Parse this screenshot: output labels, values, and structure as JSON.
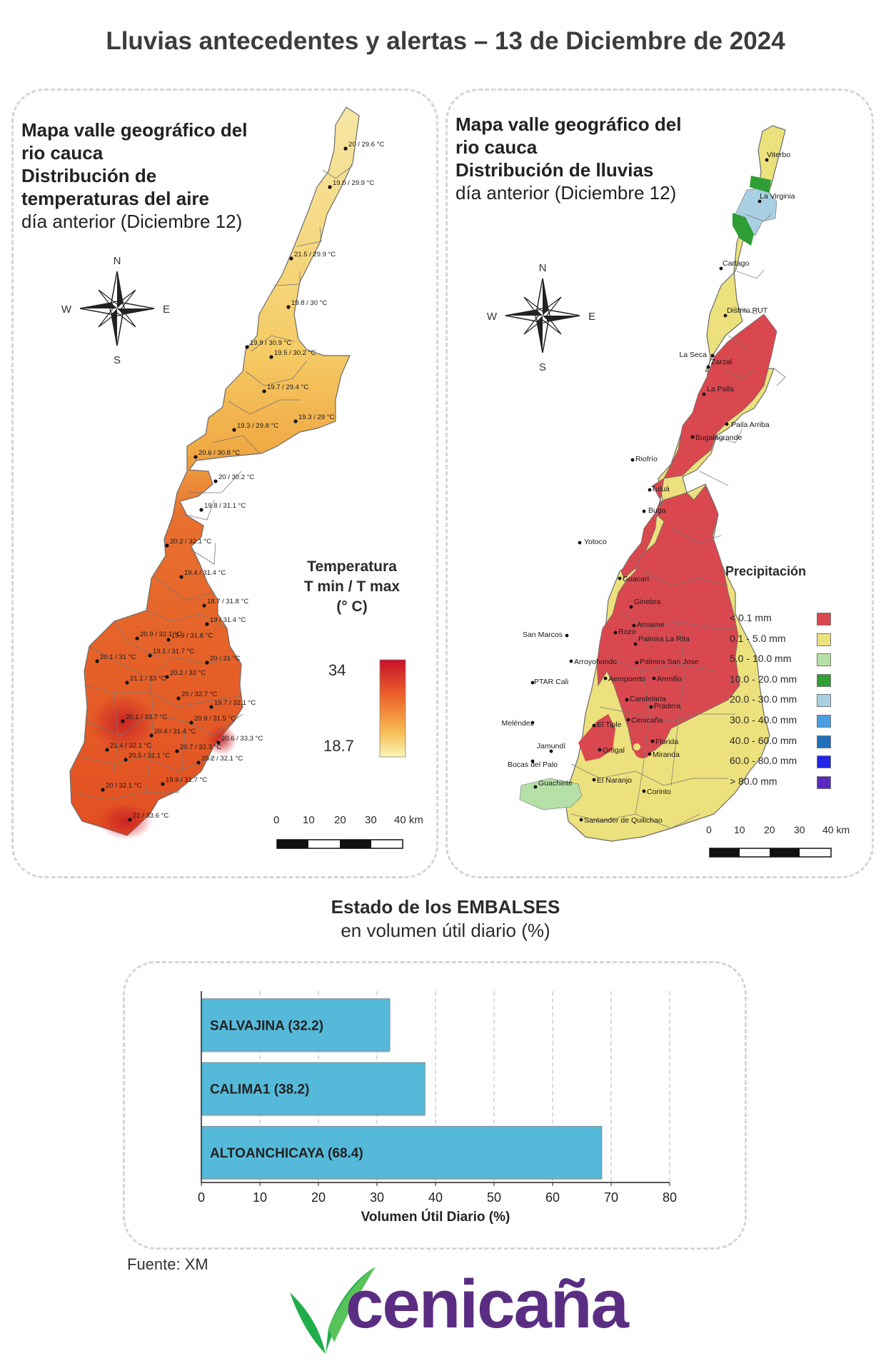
{
  "title": "Lluvias antecedentes y alertas – 13 de Diciembre de 2024",
  "temp_map": {
    "title_line1": "Mapa valle geográfico del",
    "title_line2": "rio cauca",
    "title_line3": "Distribución de",
    "title_line4": "temperaturas del aire",
    "subtitle": "día anterior (Diciembre 12)",
    "legend_title_line1": "Temperatura",
    "legend_title_line2": "T min / T max",
    "legend_title_line3": "(° C)",
    "legend_max": "34",
    "legend_min": "18.7",
    "scale_labels": [
      "0",
      "10",
      "20",
      "30",
      "40 km"
    ],
    "compass": {
      "n": "N",
      "s": "S",
      "e": "E",
      "w": "W"
    },
    "stations": [
      "20 / 29.6 °C",
      "19.0 / 29.9 °C",
      "21.5 / 29.9 °C",
      "19.8 / 30 °C",
      "19.9 / 30.9 °C",
      "19.5 / 30.2 °C",
      "19.7 / 29.4 °C",
      "19.3 / 29 °C",
      "19.3 / 29.8 °C",
      "20.6 / 30.8 °C",
      "20 / 30.2 °C",
      "19.8 / 31.1 °C",
      "20.2 / 32.1 °C",
      "19.4 / 31.4 °C",
      "18.7 / 31.8 °C",
      "19 / 31.4 °C",
      "20.9 / 32.1 °C",
      "19.9 / 31.8 °C",
      "20.1 / 31 °C",
      "19.1 / 31.7 °C",
      "20 / 31 °C",
      "21.1 / 33 °C",
      "20.2 / 32 °C",
      "20 / 32.7 °C",
      "19.7 / 32.1 °C",
      "20.1 / 33.7 °C",
      "20.9 / 31.5 °C",
      "20.4 / 31.4 °C",
      "20.6 / 33.3 °C",
      "21.4 / 32.1 °C",
      "20.7 / 32.3 °C",
      "20.5 / 32.1 °C",
      "20.2 / 32.1 °C",
      "20 / 32.1 °C",
      "19.9 / 31.7 °C",
      "21 / 33.6 °C"
    ]
  },
  "rain_map": {
    "title_line1": "Mapa valle geográfico del",
    "title_line2": "rio cauca",
    "title_line3": "Distribución de lluvias",
    "subtitle": "día anterior (Diciembre 12)",
    "legend_title": "Precipitación",
    "scale_labels": [
      "0",
      "10",
      "20",
      "30",
      "40 km"
    ],
    "compass": {
      "n": "N",
      "s": "S",
      "e": "E",
      "w": "W"
    },
    "legend": [
      {
        "label": "< 0.1 mm",
        "color": "#d9484f"
      },
      {
        "label": "0.1 - 5.0 mm",
        "color": "#ece17c"
      },
      {
        "label": "5.0 - 10.0 mm",
        "color": "#b5e0a8"
      },
      {
        "label": "10.0 - 20.0 mm",
        "color": "#2e9e35"
      },
      {
        "label": "20.0 - 30.0 mm",
        "color": "#a9cfe2"
      },
      {
        "label": "30.0 - 40.0 mm",
        "color": "#4a9de0"
      },
      {
        "label": "40.0 - 60.0 mm",
        "color": "#1f6fba"
      },
      {
        "label": "60.0 - 80.0 mm",
        "color": "#2323e8"
      },
      {
        "label": "> 80.0 mm",
        "color": "#5a28c0"
      }
    ],
    "places": [
      "Viterbo",
      "La Virginia",
      "Cartago",
      "Distrito RUT",
      "La Seca",
      "Zarzal",
      "La Paila",
      "Paila Arriba",
      "Bugalagrande",
      "Riofrío",
      "Tuluá",
      "Buga",
      "Yotoco",
      "Guacarí",
      "Ginebra",
      "Amaime",
      "San Marcos",
      "Rozo",
      "Palmira La Rita",
      "Arroyohondo",
      "Palmira San Jose",
      "Aeropuerto",
      "Arenillo",
      "PTAR Cali",
      "Candelaria",
      "Pradera",
      "Meléndez",
      "El Tiple",
      "Cenicaña",
      "Florida",
      "Jamundí",
      "Bocas del Palo",
      "Ortigal",
      "Miranda",
      "Guachinte",
      "El Naranjo",
      "Corinto",
      "Santander de Quilichao"
    ]
  },
  "reservoirs": {
    "heading_bold": "Estado de los EMBALSES",
    "heading_sub": "en volumen útil diario (%)",
    "source": "Fuente: XM"
  },
  "chart_data": {
    "type": "bar",
    "orientation": "horizontal",
    "categories": [
      "SALVAJINA",
      "CALIMA1",
      "ALTOANCHICAYA"
    ],
    "values": [
      32.2,
      38.2,
      68.4
    ],
    "bar_labels": [
      "SALVAJINA (32.2)",
      "CALIMA1 (38.2)",
      "ALTOANCHICAYA (68.4)"
    ],
    "xlabel": "Volumen Útil Diario (%)",
    "xlim": [
      0,
      80
    ],
    "xticks": [
      0,
      10,
      20,
      30,
      40,
      50,
      60,
      70,
      80
    ],
    "grid": true,
    "bar_color": "#55bada"
  },
  "logo": {
    "text": "cenicaña",
    "text_color": "#5a2d82",
    "mark_color": "#1fae4b"
  }
}
